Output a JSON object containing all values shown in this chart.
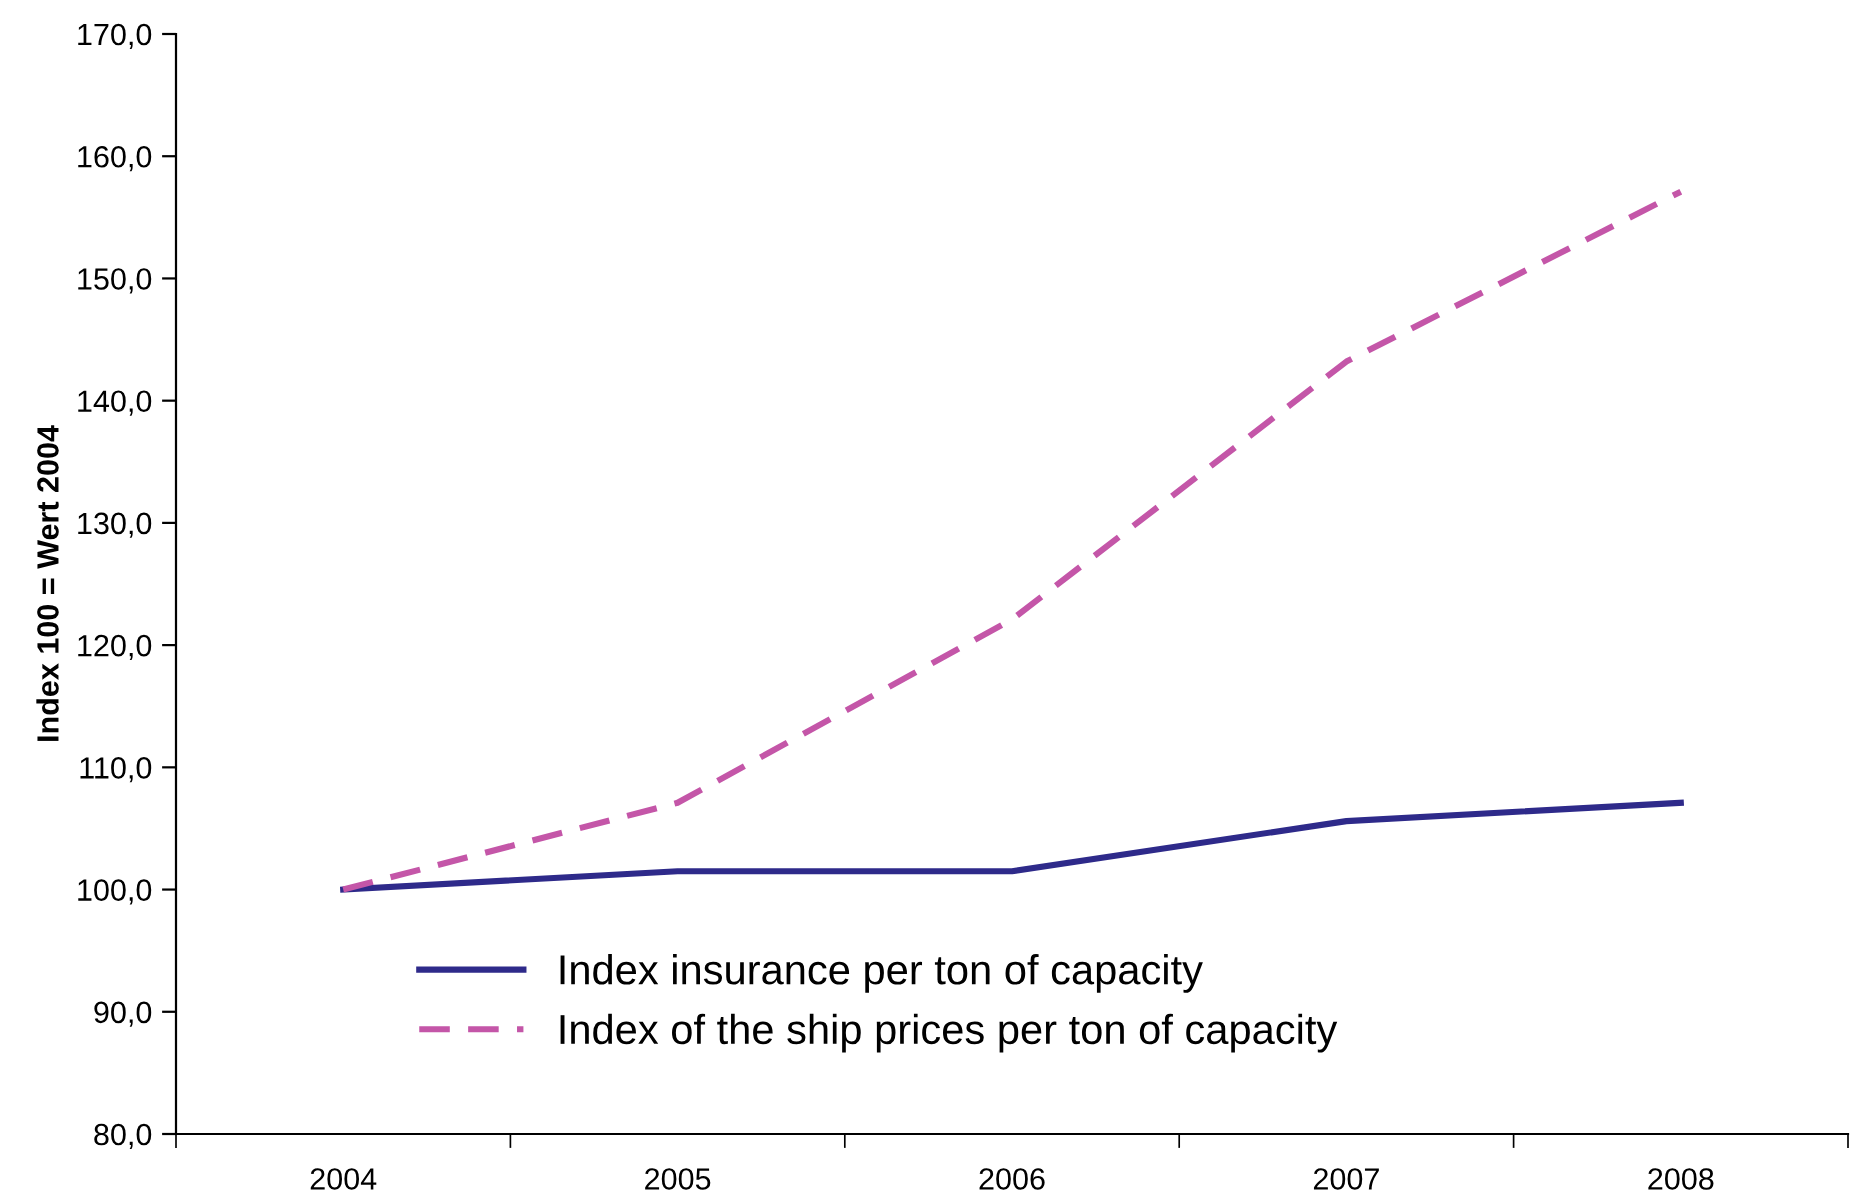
{
  "chart_data": {
    "type": "line",
    "ylabel": "Index 100 = Wert 2004",
    "categories": [
      "2004",
      "2005",
      "2006",
      "2007",
      "2008"
    ],
    "series": [
      {
        "name": "Index insurance per ton of capacity",
        "color": "#2e2a8a",
        "line_style": "solid",
        "values": [
          100.0,
          101.5,
          101.5,
          105.6,
          107.1
        ]
      },
      {
        "name": "Index of the ship prices per ton of capacity",
        "color": "#c456a8",
        "line_style": "dashed",
        "values": [
          100.0,
          107.1,
          122.1,
          143.2,
          157.1
        ]
      }
    ],
    "ylim": [
      80,
      170
    ],
    "yticks": [
      {
        "value": 80,
        "label": "80,0"
      },
      {
        "value": 90,
        "label": "90,0"
      },
      {
        "value": 100,
        "label": "100,0"
      },
      {
        "value": 110,
        "label": "110,0"
      },
      {
        "value": 120,
        "label": "120,0"
      },
      {
        "value": 130,
        "label": "130,0"
      },
      {
        "value": 140,
        "label": "140,0"
      },
      {
        "value": 150,
        "label": "150,0"
      },
      {
        "value": 160,
        "label": "160,0"
      },
      {
        "value": 170,
        "label": "170,0"
      }
    ],
    "grid": false,
    "legend": "bottom",
    "marker": "none"
  }
}
